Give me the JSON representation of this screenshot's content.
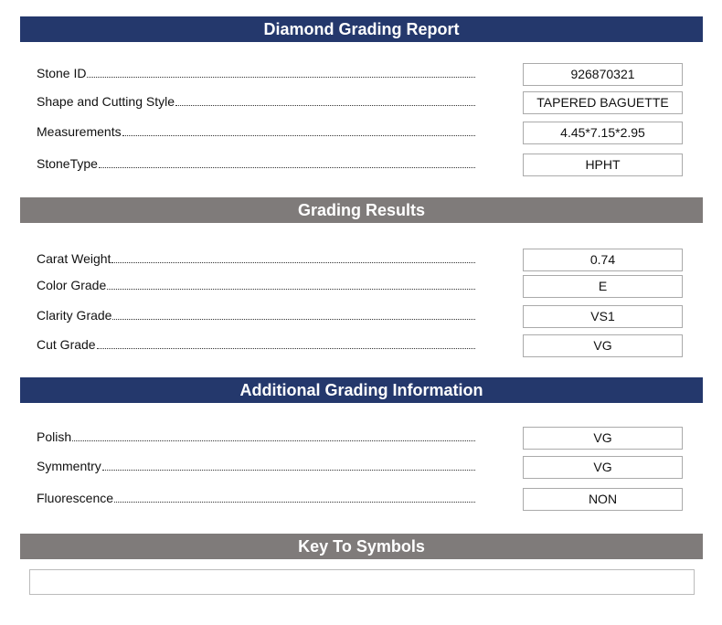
{
  "sections": [
    {
      "title": "Diamond Grading Report",
      "rows": [
        {
          "label": "Stone ID",
          "value": "926870321"
        },
        {
          "label": "Shape and Cutting Style",
          "value": "TAPERED BAGUETTE"
        },
        {
          "label": "Measurements",
          "value": "4.45*7.15*2.95"
        },
        {
          "label": "StoneType",
          "value": "HPHT"
        }
      ]
    },
    {
      "title": "Grading Results",
      "rows": [
        {
          "label": "Carat Weight",
          "value": "0.74"
        },
        {
          "label": "Color Grade",
          "value": "E"
        },
        {
          "label": "Clarity Grade",
          "value": "VS1"
        },
        {
          "label": "Cut Grade",
          "value": "VG"
        }
      ]
    },
    {
      "title": "Additional Grading Information",
      "rows": [
        {
          "label": "Polish",
          "value": "VG"
        },
        {
          "label": "Symmentry",
          "value": "VG"
        },
        {
          "label": "Fluorescence",
          "value": "NON"
        }
      ]
    },
    {
      "title": "Key To Symbols",
      "rows": []
    }
  ]
}
